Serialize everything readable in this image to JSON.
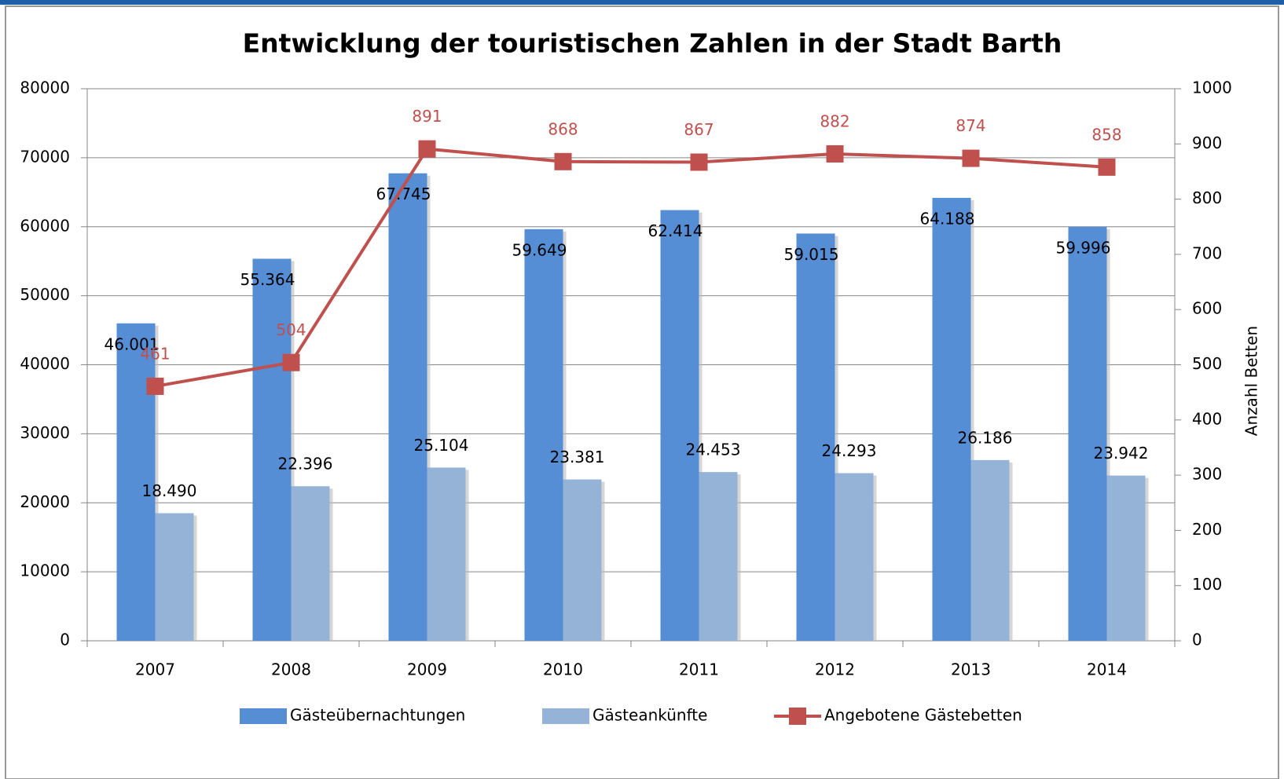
{
  "chart_data": {
    "type": "bar",
    "title": "Entwicklung der touristischen Zahlen in der Stadt Barth",
    "y2label": "Anzahl Betten",
    "categories": [
      "2007",
      "2008",
      "2009",
      "2010",
      "2011",
      "2012",
      "2013",
      "2014"
    ],
    "series": [
      {
        "name": "Gästeübernachtungen",
        "type": "bar",
        "color": "#558ed5",
        "values": [
          46001,
          55364,
          67745,
          59649,
          62414,
          59015,
          64188,
          59996
        ],
        "value_labels": [
          "46.001",
          "55.364",
          "67.745",
          "59.649",
          "62.414",
          "59.015",
          "64.188",
          "59.996"
        ]
      },
      {
        "name": "Gästeankünfte",
        "type": "bar",
        "color": "#95b3d7",
        "values": [
          18490,
          22396,
          25104,
          23381,
          24453,
          24293,
          26186,
          23942
        ],
        "value_labels": [
          "18.490",
          "22.396",
          "25.104",
          "23.381",
          "24.453",
          "24.293",
          "26.186",
          "23.942"
        ]
      },
      {
        "name": "Angebotene Gästebetten",
        "type": "line",
        "axis": "y2",
        "color": "#c0504d",
        "values": [
          461,
          504,
          891,
          868,
          867,
          882,
          874,
          858
        ]
      }
    ],
    "ylim": [
      0,
      80000
    ],
    "yticks": [
      0,
      10000,
      20000,
      30000,
      40000,
      50000,
      60000,
      70000,
      80000
    ],
    "y2lim": [
      0,
      1000
    ],
    "y2ticks": [
      0,
      100,
      200,
      300,
      400,
      500,
      600,
      700,
      800,
      900,
      1000
    ],
    "grid": true,
    "legend": "bottom"
  }
}
